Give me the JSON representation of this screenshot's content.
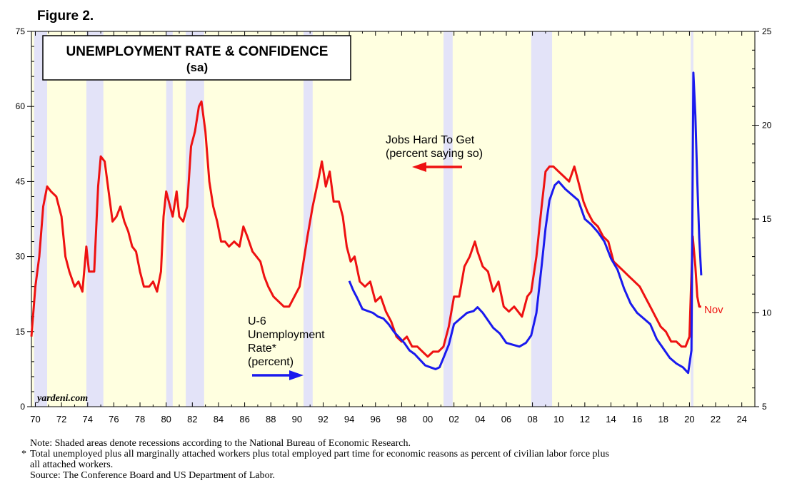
{
  "figure_label": "Figure 2.",
  "notes": {
    "note": "Note: Shaded areas denote recessions according to the National Bureau of Economic Research.",
    "asterisk": "*",
    "footnote_line1": "Total unemployed plus all marginally attached workers plus total employed part time for economic reasons as percent of civilian labor force plus",
    "footnote_line2": "all attached workers.",
    "source": "Source: The Conference Board and US Department of Labor."
  },
  "colors": {
    "background": "#ffffe0",
    "recession": "#e3e3f8",
    "jobs_hard_to_get": "#ee1111",
    "u6": "#1a1aee"
  },
  "chart_data": {
    "type": "line",
    "title": "UNEMPLOYMENT RATE & CONFIDENCE",
    "subtitle": "(sa)",
    "watermark": "yardeni.com",
    "x_range": [
      1969.7,
      2025.0
    ],
    "x_tick_labels": [
      "70",
      "72",
      "74",
      "76",
      "78",
      "80",
      "82",
      "84",
      "86",
      "88",
      "90",
      "92",
      "94",
      "96",
      "98",
      "00",
      "02",
      "04",
      "06",
      "08",
      "10",
      "12",
      "14",
      "16",
      "18",
      "20",
      "22",
      "24"
    ],
    "left_axis": {
      "range": [
        0,
        75
      ],
      "ticks": [
        "0",
        "15",
        "30",
        "45",
        "60",
        "75"
      ]
    },
    "right_axis": {
      "range": [
        5,
        25
      ],
      "ticks": [
        "5",
        "10",
        "15",
        "20",
        "25"
      ]
    },
    "recessions": [
      [
        1969.9,
        1970.9
      ],
      [
        1973.9,
        1975.2
      ],
      [
        1980.0,
        1980.5
      ],
      [
        1981.5,
        1982.9
      ],
      [
        1990.5,
        1991.2
      ],
      [
        2001.2,
        2001.9
      ],
      [
        2007.9,
        2009.5
      ],
      [
        2020.1,
        2020.3
      ]
    ],
    "annotations": {
      "jobs_label_line1": "Jobs Hard To Get",
      "jobs_label_line2": "(percent saying so)",
      "u6_label_line1": "U-6",
      "u6_label_line2": "Unemployment",
      "u6_label_line3": "Rate*",
      "u6_label_line4": "(percent)",
      "last_point_label": "Nov"
    },
    "series": [
      {
        "name": "Jobs Hard To Get",
        "axis": "left",
        "points": [
          [
            1969.7,
            14
          ],
          [
            1970.0,
            24
          ],
          [
            1970.3,
            30
          ],
          [
            1970.6,
            40
          ],
          [
            1970.9,
            44
          ],
          [
            1971.2,
            43
          ],
          [
            1971.6,
            42
          ],
          [
            1972.0,
            38
          ],
          [
            1972.3,
            30
          ],
          [
            1972.6,
            27
          ],
          [
            1973.0,
            24
          ],
          [
            1973.3,
            25
          ],
          [
            1973.6,
            23
          ],
          [
            1973.9,
            32
          ],
          [
            1974.1,
            27
          ],
          [
            1974.5,
            27
          ],
          [
            1974.8,
            44
          ],
          [
            1975.0,
            50
          ],
          [
            1975.3,
            49
          ],
          [
            1975.6,
            43
          ],
          [
            1975.9,
            37
          ],
          [
            1976.2,
            38
          ],
          [
            1976.5,
            40
          ],
          [
            1976.8,
            37
          ],
          [
            1977.1,
            35
          ],
          [
            1977.4,
            32
          ],
          [
            1977.7,
            31
          ],
          [
            1978.0,
            27
          ],
          [
            1978.3,
            24
          ],
          [
            1978.7,
            24
          ],
          [
            1979.0,
            25
          ],
          [
            1979.3,
            23
          ],
          [
            1979.6,
            27
          ],
          [
            1979.8,
            38
          ],
          [
            1980.0,
            43
          ],
          [
            1980.3,
            40
          ],
          [
            1980.5,
            38
          ],
          [
            1980.8,
            43
          ],
          [
            1981.0,
            38
          ],
          [
            1981.3,
            37
          ],
          [
            1981.6,
            40
          ],
          [
            1981.9,
            52
          ],
          [
            1982.2,
            55
          ],
          [
            1982.5,
            60
          ],
          [
            1982.7,
            61
          ],
          [
            1983.0,
            55
          ],
          [
            1983.3,
            45
          ],
          [
            1983.6,
            40
          ],
          [
            1983.9,
            37
          ],
          [
            1984.2,
            33
          ],
          [
            1984.5,
            33
          ],
          [
            1984.8,
            32
          ],
          [
            1985.2,
            33
          ],
          [
            1985.6,
            32
          ],
          [
            1985.9,
            36
          ],
          [
            1986.2,
            34
          ],
          [
            1986.6,
            31
          ],
          [
            1986.9,
            30
          ],
          [
            1987.2,
            29
          ],
          [
            1987.5,
            26
          ],
          [
            1987.8,
            24
          ],
          [
            1988.2,
            22
          ],
          [
            1988.6,
            21
          ],
          [
            1989.0,
            20
          ],
          [
            1989.4,
            20
          ],
          [
            1989.8,
            22
          ],
          [
            1990.2,
            24
          ],
          [
            1990.5,
            29
          ],
          [
            1990.8,
            34
          ],
          [
            1991.2,
            40
          ],
          [
            1991.6,
            45
          ],
          [
            1991.9,
            49
          ],
          [
            1992.2,
            44
          ],
          [
            1992.5,
            47
          ],
          [
            1992.8,
            41
          ],
          [
            1993.2,
            41
          ],
          [
            1993.5,
            38
          ],
          [
            1993.8,
            32
          ],
          [
            1994.1,
            29
          ],
          [
            1994.4,
            30
          ],
          [
            1994.8,
            25
          ],
          [
            1995.2,
            24
          ],
          [
            1995.6,
            25
          ],
          [
            1996.0,
            21
          ],
          [
            1996.4,
            22
          ],
          [
            1996.8,
            19
          ],
          [
            1997.2,
            17
          ],
          [
            1997.6,
            14
          ],
          [
            1998.0,
            13
          ],
          [
            1998.4,
            14
          ],
          [
            1998.8,
            12
          ],
          [
            1999.2,
            12
          ],
          [
            1999.6,
            11
          ],
          [
            2000.0,
            10
          ],
          [
            2000.4,
            11
          ],
          [
            2000.8,
            11
          ],
          [
            2001.2,
            12
          ],
          [
            2001.6,
            16
          ],
          [
            2002.0,
            22
          ],
          [
            2002.4,
            22
          ],
          [
            2002.8,
            28
          ],
          [
            2003.2,
            30
          ],
          [
            2003.6,
            33
          ],
          [
            2003.8,
            31
          ],
          [
            2004.2,
            28
          ],
          [
            2004.6,
            27
          ],
          [
            2005.0,
            23
          ],
          [
            2005.4,
            25
          ],
          [
            2005.8,
            20
          ],
          [
            2006.2,
            19
          ],
          [
            2006.6,
            20
          ],
          [
            2006.9,
            19
          ],
          [
            2007.2,
            18
          ],
          [
            2007.6,
            22
          ],
          [
            2007.9,
            23
          ],
          [
            2008.3,
            30
          ],
          [
            2008.7,
            40
          ],
          [
            2009.0,
            47
          ],
          [
            2009.3,
            48
          ],
          [
            2009.6,
            48
          ],
          [
            2010.0,
            47
          ],
          [
            2010.4,
            46
          ],
          [
            2010.8,
            45
          ],
          [
            2011.2,
            48
          ],
          [
            2011.5,
            45
          ],
          [
            2011.9,
            41
          ],
          [
            2012.2,
            39
          ],
          [
            2012.6,
            37
          ],
          [
            2013.0,
            36
          ],
          [
            2013.4,
            34
          ],
          [
            2013.8,
            33
          ],
          [
            2014.2,
            29
          ],
          [
            2014.6,
            28
          ],
          [
            2015.0,
            27
          ],
          [
            2015.4,
            26
          ],
          [
            2015.8,
            25
          ],
          [
            2016.2,
            24
          ],
          [
            2016.6,
            22
          ],
          [
            2017.0,
            20
          ],
          [
            2017.4,
            18
          ],
          [
            2017.8,
            16
          ],
          [
            2018.2,
            15
          ],
          [
            2018.6,
            13
          ],
          [
            2019.0,
            13
          ],
          [
            2019.4,
            12
          ],
          [
            2019.7,
            12
          ],
          [
            2020.0,
            14
          ],
          [
            2020.1,
            22
          ],
          [
            2020.25,
            34
          ],
          [
            2020.45,
            28
          ],
          [
            2020.6,
            22
          ],
          [
            2020.75,
            20
          ],
          [
            2020.9,
            20
          ]
        ]
      },
      {
        "name": "U-6 Unemployment Rate",
        "axis": "right",
        "points": [
          [
            1994.0,
            11.7
          ],
          [
            1994.3,
            11.2
          ],
          [
            1994.6,
            10.8
          ],
          [
            1995.0,
            10.2
          ],
          [
            1995.4,
            10.1
          ],
          [
            1995.8,
            10.0
          ],
          [
            1996.2,
            9.8
          ],
          [
            1996.6,
            9.7
          ],
          [
            1997.0,
            9.4
          ],
          [
            1997.4,
            9.0
          ],
          [
            1997.8,
            8.7
          ],
          [
            1998.2,
            8.4
          ],
          [
            1998.6,
            8.0
          ],
          [
            1999.0,
            7.8
          ],
          [
            1999.4,
            7.5
          ],
          [
            1999.8,
            7.2
          ],
          [
            2000.2,
            7.1
          ],
          [
            2000.6,
            7.0
          ],
          [
            2000.9,
            7.1
          ],
          [
            2001.2,
            7.6
          ],
          [
            2001.6,
            8.3
          ],
          [
            2002.0,
            9.4
          ],
          [
            2002.5,
            9.7
          ],
          [
            2003.0,
            10.0
          ],
          [
            2003.5,
            10.1
          ],
          [
            2003.8,
            10.3
          ],
          [
            2004.2,
            10.0
          ],
          [
            2004.6,
            9.6
          ],
          [
            2005.0,
            9.2
          ],
          [
            2005.5,
            8.9
          ],
          [
            2006.0,
            8.4
          ],
          [
            2006.5,
            8.3
          ],
          [
            2007.0,
            8.2
          ],
          [
            2007.5,
            8.4
          ],
          [
            2007.9,
            8.8
          ],
          [
            2008.3,
            10.0
          ],
          [
            2008.7,
            12.5
          ],
          [
            2009.0,
            14.5
          ],
          [
            2009.3,
            16.0
          ],
          [
            2009.7,
            16.8
          ],
          [
            2010.0,
            17.0
          ],
          [
            2010.5,
            16.6
          ],
          [
            2011.0,
            16.3
          ],
          [
            2011.5,
            16.0
          ],
          [
            2012.0,
            15.0
          ],
          [
            2012.5,
            14.7
          ],
          [
            2013.0,
            14.3
          ],
          [
            2013.5,
            13.8
          ],
          [
            2014.0,
            12.9
          ],
          [
            2014.5,
            12.3
          ],
          [
            2015.0,
            11.3
          ],
          [
            2015.5,
            10.5
          ],
          [
            2016.0,
            10.0
          ],
          [
            2016.5,
            9.7
          ],
          [
            2017.0,
            9.4
          ],
          [
            2017.5,
            8.6
          ],
          [
            2018.0,
            8.1
          ],
          [
            2018.5,
            7.6
          ],
          [
            2019.0,
            7.3
          ],
          [
            2019.5,
            7.1
          ],
          [
            2019.9,
            6.8
          ],
          [
            2020.15,
            8.0
          ],
          [
            2020.3,
            22.8
          ],
          [
            2020.45,
            20.5
          ],
          [
            2020.6,
            17.0
          ],
          [
            2020.75,
            14.0
          ],
          [
            2020.9,
            12.0
          ]
        ]
      }
    ]
  }
}
